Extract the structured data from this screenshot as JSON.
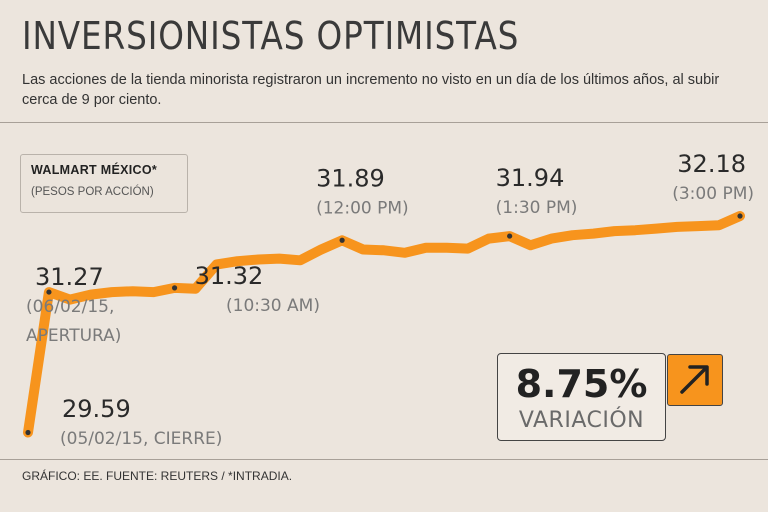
{
  "header": {
    "title": "INVERSIONISTAS OPTIMISTAS",
    "subtitle": "Las acciones de la tienda minorista registraron un incremento no visto en un día de los últimos años, al subir cerca de 9 por ciento."
  },
  "legend": {
    "title": "WALMART MÉXICO*",
    "subtitle": "(PESOS POR ACCIÓN)"
  },
  "variation": {
    "value": "8.75%",
    "label": "VARIACIÓN",
    "icon": "arrow-up-right-icon"
  },
  "footer": "GRÁFICO: EE. FUENTE: REUTERS / *INTRADIA.",
  "colors": {
    "line": "#f7941d",
    "background": "#ece5dd",
    "marker": "#333333"
  },
  "chart_data": {
    "type": "line",
    "title": "WALMART MÉXICO*",
    "ylabel": "(PESOS POR ACCIÓN)",
    "ylim": [
      29.5,
      32.3
    ],
    "x": [
      0,
      1,
      2,
      3,
      4,
      5,
      6,
      7,
      8,
      9,
      10,
      11,
      12,
      13,
      14,
      15,
      16,
      17,
      18,
      19,
      20,
      21,
      22,
      23,
      24,
      25,
      26,
      27,
      28,
      29,
      30,
      31,
      32,
      33,
      34
    ],
    "values": [
      29.59,
      31.27,
      31.18,
      31.24,
      31.27,
      31.28,
      31.27,
      31.32,
      31.31,
      31.6,
      31.64,
      31.66,
      31.67,
      31.65,
      31.78,
      31.89,
      31.78,
      31.77,
      31.74,
      31.8,
      31.8,
      31.79,
      31.91,
      31.94,
      31.83,
      31.91,
      31.95,
      31.97,
      32.0,
      32.01,
      32.03,
      32.05,
      32.06,
      32.07,
      32.18
    ],
    "labels": [
      {
        "index": 0,
        "value": "29.59",
        "note": "(05/02/15, CIERRE)"
      },
      {
        "index": 1,
        "value": "31.27",
        "note1": "(06/02/15,",
        "note2": "APERTURA)"
      },
      {
        "index": 7,
        "value": "31.32",
        "note": "(10:30 AM)"
      },
      {
        "index": 15,
        "value": "31.89",
        "note": "(12:00 PM)"
      },
      {
        "index": 23,
        "value": "31.94",
        "note": "(1:30 PM)"
      },
      {
        "index": 34,
        "value": "32.18",
        "note": "(3:00 PM)"
      }
    ]
  }
}
